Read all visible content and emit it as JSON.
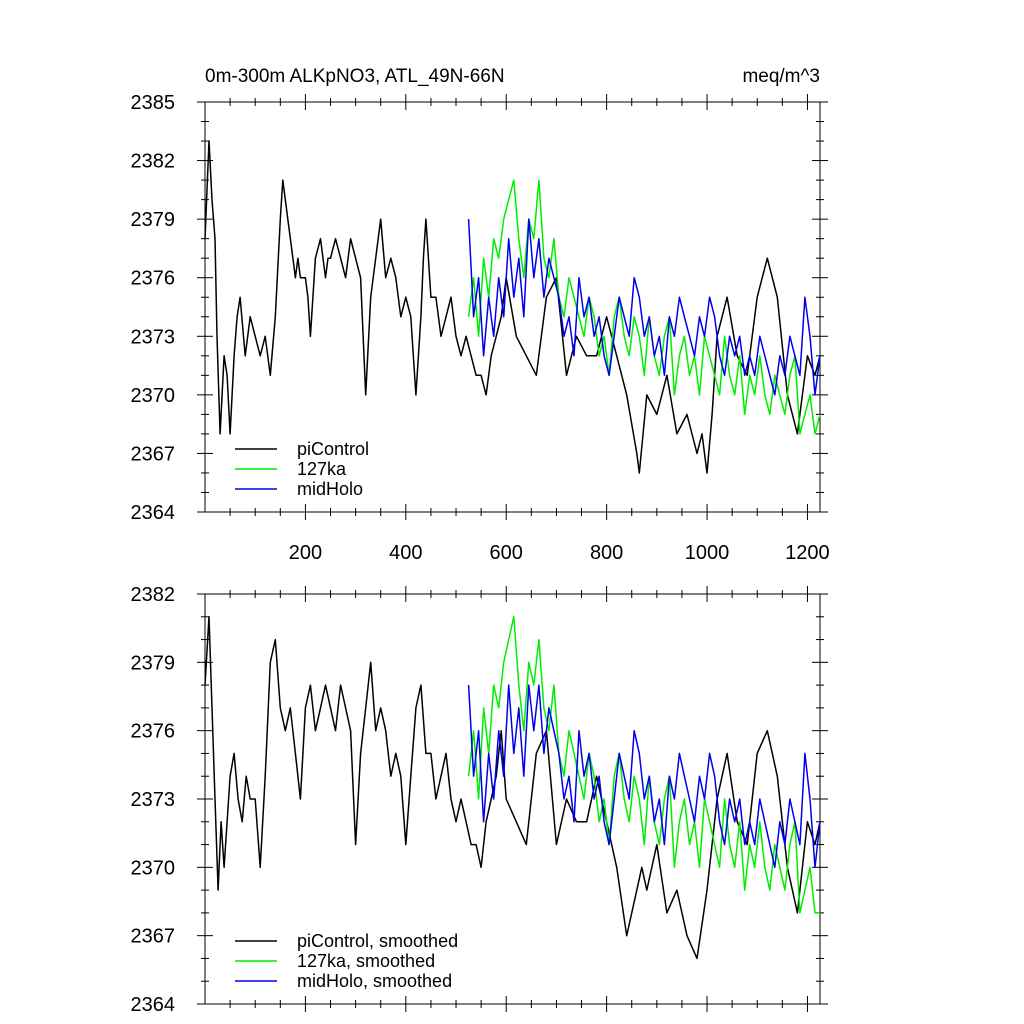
{
  "chart_data": [
    {
      "type": "line",
      "title": "0m-300m ALKpNO3, ATL_49N-66N",
      "units": "meq/m^3",
      "xlim": [
        0,
        1225
      ],
      "ylim": [
        2364,
        2385
      ],
      "xticks": [
        200,
        400,
        600,
        800,
        1000,
        1200
      ],
      "xtick_labels": [
        "200",
        "400",
        "600",
        "800",
        "1000",
        "1200"
      ],
      "yticks": [
        2364,
        2367,
        2370,
        2373,
        2376,
        2379,
        2382,
        2385
      ],
      "ytick_labels": [
        "2364",
        "2367",
        "2370",
        "2373",
        "2376",
        "2379",
        "2382",
        "2385"
      ],
      "legend_position": "bottom-left",
      "series": [
        {
          "name": "piControl",
          "color": "#000000",
          "x": [
            0,
            8,
            14,
            20,
            24,
            30,
            38,
            44,
            50,
            58,
            64,
            70,
            80,
            90,
            100,
            110,
            120,
            130,
            140,
            150,
            155,
            165,
            175,
            180,
            185,
            190,
            200,
            205,
            210,
            220,
            230,
            240,
            245,
            250,
            260,
            270,
            280,
            290,
            300,
            310,
            320,
            330,
            340,
            350,
            360,
            370,
            380,
            390,
            400,
            410,
            420,
            430,
            435,
            440,
            450,
            460,
            470,
            480,
            490,
            500,
            510,
            520,
            530,
            540,
            550,
            560,
            570,
            580,
            590,
            600,
            620,
            640,
            660,
            680,
            700,
            720,
            740,
            760,
            780,
            800,
            820,
            840,
            860,
            865,
            880,
            900,
            920,
            940,
            960,
            980,
            990,
            1000,
            1010,
            1020,
            1040,
            1060,
            1080,
            1100,
            1120,
            1140,
            1160,
            1180,
            1200,
            1215,
            1225
          ],
          "values": [
            2378,
            2383,
            2380,
            2378,
            2373,
            2368,
            2372,
            2371,
            2368,
            2372,
            2374,
            2375,
            2372,
            2374,
            2373,
            2372,
            2373,
            2371,
            2374,
            2379,
            2381,
            2379,
            2377,
            2376,
            2377,
            2376,
            2376,
            2375,
            2373,
            2377,
            2378,
            2376,
            2377,
            2377,
            2378,
            2377,
            2376,
            2378,
            2377,
            2376,
            2370,
            2375,
            2377,
            2379,
            2376,
            2377,
            2376,
            2374,
            2375,
            2374,
            2370,
            2374,
            2377,
            2379,
            2375,
            2375,
            2373,
            2374,
            2375,
            2373,
            2372,
            2373,
            2372,
            2371,
            2371,
            2370,
            2372,
            2373,
            2374,
            2376,
            2373,
            2372,
            2371,
            2375,
            2376,
            2371,
            2373,
            2372,
            2372,
            2374,
            2372,
            2370,
            2367,
            2366,
            2370,
            2369,
            2371,
            2368,
            2369,
            2367,
            2368,
            2366,
            2369,
            2373,
            2375,
            2372,
            2371,
            2375,
            2377,
            2375,
            2370,
            2368,
            2372,
            2371,
            2372
          ]
        },
        {
          "name": "127ka",
          "color": "#00ee00",
          "x": [
            525,
            535,
            545,
            555,
            565,
            575,
            585,
            595,
            605,
            615,
            625,
            635,
            645,
            655,
            665,
            675,
            685,
            695,
            705,
            715,
            725,
            735,
            745,
            755,
            765,
            775,
            785,
            795,
            805,
            815,
            825,
            835,
            845,
            855,
            865,
            875,
            885,
            895,
            905,
            915,
            925,
            935,
            945,
            955,
            965,
            975,
            985,
            995,
            1005,
            1015,
            1025,
            1035,
            1045,
            1055,
            1065,
            1075,
            1085,
            1095,
            1105,
            1115,
            1125,
            1135,
            1145,
            1155,
            1165,
            1175,
            1185,
            1195,
            1205,
            1215,
            1225
          ],
          "values": [
            2374,
            2376,
            2373,
            2377,
            2375,
            2378,
            2377,
            2379,
            2380,
            2381,
            2378,
            2376,
            2379,
            2378,
            2381,
            2377,
            2376,
            2378,
            2375,
            2374,
            2376,
            2375,
            2374,
            2373,
            2375,
            2374,
            2372,
            2373,
            2371,
            2374,
            2375,
            2373,
            2372,
            2374,
            2373,
            2371,
            2374,
            2372,
            2371,
            2373,
            2374,
            2370,
            2372,
            2373,
            2371,
            2372,
            2370,
            2373,
            2372,
            2371,
            2370,
            2373,
            2371,
            2370,
            2372,
            2369,
            2371,
            2370,
            2372,
            2370,
            2369,
            2371,
            2370,
            2369,
            2371,
            2372,
            2368,
            2369,
            2370,
            2368,
            2369
          ]
        },
        {
          "name": "midHolo",
          "color": "#0000ee",
          "x": [
            525,
            535,
            545,
            555,
            565,
            575,
            585,
            595,
            605,
            615,
            625,
            635,
            645,
            655,
            665,
            675,
            685,
            695,
            705,
            715,
            725,
            735,
            745,
            755,
            765,
            775,
            785,
            795,
            805,
            815,
            825,
            835,
            845,
            855,
            865,
            875,
            885,
            895,
            905,
            915,
            925,
            935,
            945,
            955,
            965,
            975,
            985,
            995,
            1005,
            1015,
            1025,
            1035,
            1045,
            1055,
            1065,
            1075,
            1085,
            1095,
            1105,
            1115,
            1125,
            1135,
            1145,
            1155,
            1165,
            1175,
            1185,
            1195,
            1205,
            1215,
            1225
          ],
          "values": [
            2379,
            2374,
            2376,
            2372,
            2375,
            2373,
            2376,
            2374,
            2378,
            2375,
            2377,
            2374,
            2379,
            2376,
            2378,
            2375,
            2377,
            2376,
            2375,
            2373,
            2374,
            2372,
            2376,
            2374,
            2375,
            2373,
            2374,
            2372,
            2371,
            2373,
            2375,
            2374,
            2373,
            2376,
            2375,
            2373,
            2374,
            2372,
            2373,
            2371,
            2374,
            2373,
            2375,
            2374,
            2373,
            2372,
            2374,
            2373,
            2375,
            2374,
            2372,
            2371,
            2373,
            2372,
            2373,
            2371,
            2372,
            2371,
            2373,
            2372,
            2371,
            2370,
            2372,
            2371,
            2373,
            2372,
            2371,
            2375,
            2373,
            2370,
            2372
          ]
        }
      ]
    },
    {
      "type": "line",
      "xlim": [
        0,
        1225
      ],
      "ylim": [
        2364,
        2382
      ],
      "yticks": [
        2364,
        2367,
        2370,
        2373,
        2376,
        2379,
        2382
      ],
      "ytick_labels": [
        "2364",
        "2367",
        "2370",
        "2373",
        "2376",
        "2379",
        "2382"
      ],
      "legend_position": "bottom-left",
      "series": [
        {
          "name": "piControl, smoothed",
          "color": "#000000",
          "x": [
            0,
            8,
            14,
            20,
            26,
            32,
            38,
            44,
            50,
            58,
            66,
            74,
            82,
            90,
            100,
            110,
            120,
            130,
            140,
            150,
            160,
            170,
            180,
            190,
            200,
            210,
            220,
            230,
            240,
            250,
            260,
            270,
            280,
            290,
            300,
            310,
            320,
            330,
            340,
            350,
            360,
            370,
            380,
            390,
            400,
            410,
            420,
            430,
            440,
            450,
            460,
            470,
            480,
            490,
            500,
            510,
            520,
            530,
            540,
            550,
            560,
            570,
            580,
            590,
            600,
            620,
            640,
            660,
            680,
            700,
            720,
            740,
            760,
            780,
            800,
            820,
            840,
            860,
            870,
            880,
            900,
            920,
            940,
            960,
            980,
            1000,
            1020,
            1040,
            1060,
            1080,
            1100,
            1120,
            1140,
            1160,
            1180,
            1200,
            1215,
            1225
          ],
          "values": [
            2378,
            2381,
            2377,
            2373,
            2369,
            2372,
            2370,
            2372,
            2374,
            2375,
            2373,
            2372,
            2374,
            2373,
            2373,
            2370,
            2374,
            2379,
            2380,
            2377,
            2376,
            2377,
            2375,
            2373,
            2377,
            2378,
            2376,
            2377,
            2378,
            2377,
            2376,
            2378,
            2377,
            2376,
            2371,
            2375,
            2377,
            2379,
            2376,
            2377,
            2376,
            2374,
            2375,
            2374,
            2371,
            2374,
            2377,
            2378,
            2375,
            2375,
            2373,
            2374,
            2375,
            2373,
            2372,
            2373,
            2372,
            2371,
            2371,
            2370,
            2372,
            2373,
            2374,
            2376,
            2373,
            2372,
            2371,
            2375,
            2376,
            2371,
            2373,
            2372,
            2372,
            2374,
            2372,
            2370,
            2367,
            2369,
            2370,
            2369,
            2371,
            2368,
            2369,
            2367,
            2366,
            2369,
            2373,
            2375,
            2372,
            2371,
            2375,
            2376,
            2374,
            2370,
            2368,
            2372,
            2371,
            2372
          ]
        },
        {
          "name": "127ka, smoothed",
          "color": "#00ee00",
          "x": [
            525,
            535,
            545,
            555,
            565,
            575,
            585,
            595,
            605,
            615,
            625,
            635,
            645,
            655,
            665,
            675,
            685,
            695,
            705,
            715,
            725,
            735,
            745,
            755,
            765,
            775,
            785,
            795,
            805,
            815,
            825,
            835,
            845,
            855,
            865,
            875,
            885,
            895,
            905,
            915,
            925,
            935,
            945,
            955,
            965,
            975,
            985,
            995,
            1005,
            1015,
            1025,
            1035,
            1045,
            1055,
            1065,
            1075,
            1085,
            1095,
            1105,
            1115,
            1125,
            1135,
            1145,
            1155,
            1165,
            1175,
            1185,
            1195,
            1205,
            1215,
            1225
          ],
          "values": [
            2374,
            2376,
            2373,
            2377,
            2375,
            2378,
            2377,
            2379,
            2380,
            2381,
            2378,
            2376,
            2379,
            2378,
            2380,
            2377,
            2376,
            2378,
            2375,
            2374,
            2376,
            2375,
            2374,
            2373,
            2375,
            2374,
            2372,
            2373,
            2371,
            2374,
            2375,
            2373,
            2372,
            2374,
            2373,
            2371,
            2374,
            2372,
            2371,
            2373,
            2374,
            2370,
            2372,
            2373,
            2371,
            2372,
            2370,
            2373,
            2372,
            2371,
            2370,
            2373,
            2371,
            2370,
            2372,
            2369,
            2371,
            2370,
            2372,
            2370,
            2369,
            2371,
            2370,
            2369,
            2371,
            2372,
            2368,
            2369,
            2370,
            2368,
            2368
          ]
        },
        {
          "name": "midHolo, smoothed",
          "color": "#0000ee",
          "x": [
            525,
            535,
            545,
            555,
            565,
            575,
            585,
            595,
            605,
            615,
            625,
            635,
            645,
            655,
            665,
            675,
            685,
            695,
            705,
            715,
            725,
            735,
            745,
            755,
            765,
            775,
            785,
            795,
            805,
            815,
            825,
            835,
            845,
            855,
            865,
            875,
            885,
            895,
            905,
            915,
            925,
            935,
            945,
            955,
            965,
            975,
            985,
            995,
            1005,
            1015,
            1025,
            1035,
            1045,
            1055,
            1065,
            1075,
            1085,
            1095,
            1105,
            1115,
            1125,
            1135,
            1145,
            1155,
            1165,
            1175,
            1185,
            1195,
            1205,
            1215,
            1225
          ],
          "values": [
            2378,
            2374,
            2376,
            2372,
            2375,
            2373,
            2376,
            2374,
            2378,
            2375,
            2377,
            2374,
            2378,
            2376,
            2378,
            2375,
            2377,
            2376,
            2375,
            2373,
            2374,
            2372,
            2376,
            2374,
            2375,
            2373,
            2374,
            2372,
            2371,
            2373,
            2375,
            2374,
            2373,
            2376,
            2375,
            2373,
            2374,
            2372,
            2373,
            2371,
            2374,
            2373,
            2375,
            2374,
            2373,
            2372,
            2374,
            2373,
            2375,
            2374,
            2372,
            2371,
            2373,
            2372,
            2373,
            2371,
            2372,
            2371,
            2373,
            2372,
            2371,
            2370,
            2372,
            2371,
            2373,
            2372,
            2371,
            2375,
            2373,
            2370,
            2372
          ]
        }
      ]
    }
  ]
}
